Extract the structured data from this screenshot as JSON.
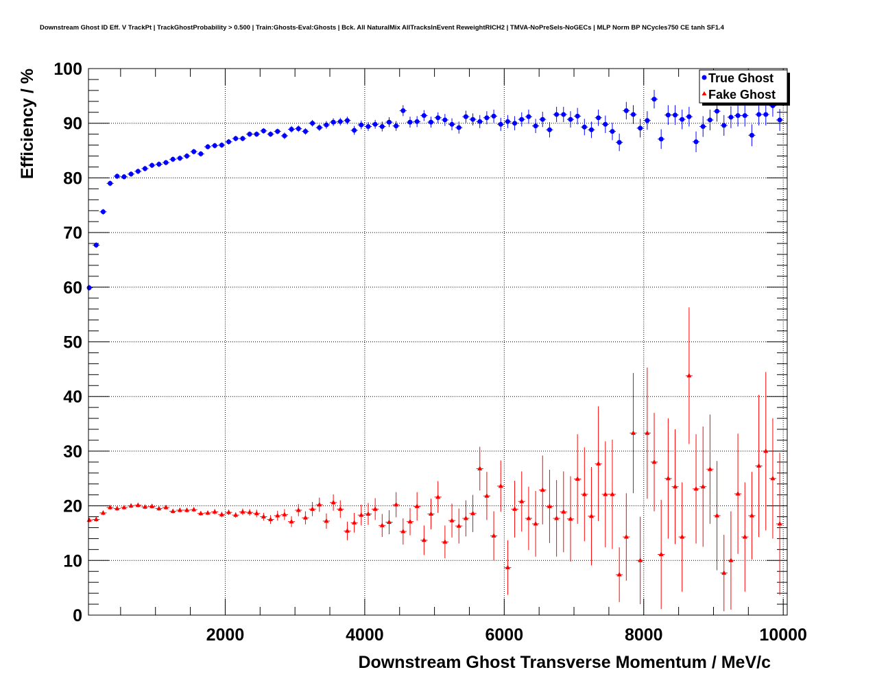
{
  "chart_data": {
    "type": "scatter",
    "title": "Downstream Ghost ID Eff. V TrackPt | TrackGhostProbability > 0.500 | Train:Ghosts-Eval:Ghosts | Bck. All NaturalMix AllTracksInEvent ReweightRICH2 | TMVA-NoPreSels-NoGECs | MLP Norm BP NCycles750 CE tanh SF1.4",
    "xlabel": "Downstream Ghost Transverse Momentum / MeV/c",
    "ylabel": "Efficiency / %",
    "xlim": [
      0,
      10000
    ],
    "ylim": [
      0,
      100
    ],
    "x_ticks": [
      2000,
      4000,
      6000,
      8000,
      10000
    ],
    "y_ticks": [
      0,
      10,
      20,
      30,
      40,
      50,
      60,
      70,
      80,
      90,
      100
    ],
    "x_tick_labels": [
      "2000",
      "4000",
      "6000",
      "8000",
      "10000"
    ],
    "y_tick_labels": [
      "0",
      "10",
      "20",
      "30",
      "40",
      "50",
      "60",
      "70",
      "80",
      "90",
      "100"
    ],
    "grid": true,
    "legend_position": "top-right",
    "bin_half_width": 50,
    "x": [
      50,
      150,
      250,
      350,
      450,
      550,
      650,
      750,
      850,
      950,
      1050,
      1150,
      1250,
      1350,
      1450,
      1550,
      1650,
      1750,
      1850,
      1950,
      2050,
      2150,
      2250,
      2350,
      2450,
      2550,
      2650,
      2750,
      2850,
      2950,
      3050,
      3150,
      3250,
      3350,
      3450,
      3550,
      3650,
      3750,
      3850,
      3950,
      4050,
      4150,
      4250,
      4350,
      4450,
      4550,
      4650,
      4750,
      4850,
      4950,
      5050,
      5150,
      5250,
      5350,
      5450,
      5550,
      5650,
      5750,
      5850,
      5950,
      6050,
      6150,
      6250,
      6350,
      6450,
      6550,
      6650,
      6750,
      6850,
      6950,
      7050,
      7150,
      7250,
      7350,
      7450,
      7550,
      7650,
      7750,
      7850,
      7950,
      8050,
      8150,
      8250,
      8350,
      8450,
      8550,
      8650,
      8750,
      8850,
      8950,
      9050,
      9150,
      9250,
      9350,
      9450,
      9550,
      9650,
      9750,
      9850,
      9950
    ],
    "series": [
      {
        "name": "True Ghost",
        "color": "#0000ff",
        "marker": "circle",
        "values": [
          59.9,
          67.7,
          73.8,
          79.0,
          80.3,
          80.2,
          80.7,
          81.2,
          81.7,
          82.3,
          82.5,
          82.8,
          83.4,
          83.6,
          84.0,
          84.8,
          84.4,
          85.7,
          85.9,
          86.0,
          86.6,
          87.2,
          87.2,
          88.0,
          88.0,
          88.6,
          88.0,
          88.5,
          87.7,
          88.9,
          89.0,
          88.5,
          90.0,
          89.2,
          89.7,
          90.2,
          90.3,
          90.5,
          88.7,
          89.7,
          89.4,
          89.8,
          89.4,
          90.2,
          89.5,
          92.3,
          90.2,
          90.3,
          91.4,
          90.2,
          91.0,
          90.6,
          89.8,
          89.2,
          91.2,
          90.7,
          90.3,
          91.0,
          91.3,
          89.8,
          90.3,
          90.0,
          90.7,
          91.2,
          89.5,
          90.7,
          88.8,
          91.6,
          91.6,
          90.7,
          91.3,
          89.3,
          88.8,
          91.0,
          89.8,
          88.5,
          86.5,
          92.3,
          91.6,
          89.1,
          90.5,
          94.4,
          87.1,
          91.5,
          91.5,
          90.7,
          91.2,
          86.6,
          89.4,
          90.6,
          92.2,
          89.6,
          91.1,
          91.4,
          91.4,
          87.8,
          91.6,
          91.6,
          93.2,
          90.6
        ],
        "errors": [
          0.5,
          0.5,
          0.5,
          0.5,
          0.5,
          0.5,
          0.5,
          0.5,
          0.5,
          0.5,
          0.5,
          0.5,
          0.5,
          0.5,
          0.5,
          0.5,
          0.5,
          0.5,
          0.5,
          0.5,
          0.5,
          0.5,
          0.5,
          0.5,
          0.5,
          0.5,
          0.5,
          0.5,
          0.6,
          0.6,
          0.6,
          0.6,
          0.6,
          0.6,
          0.7,
          0.7,
          0.7,
          0.7,
          0.8,
          0.8,
          0.8,
          0.8,
          0.9,
          0.9,
          0.9,
          1.0,
          1.0,
          1.0,
          1.0,
          1.0,
          1.0,
          1.1,
          1.1,
          1.1,
          1.1,
          1.1,
          1.2,
          1.2,
          1.2,
          1.2,
          1.2,
          1.3,
          1.3,
          1.3,
          1.3,
          1.4,
          1.4,
          1.4,
          1.4,
          1.5,
          1.5,
          1.5,
          1.5,
          1.5,
          1.6,
          1.6,
          1.6,
          1.6,
          1.7,
          1.7,
          1.7,
          1.7,
          1.8,
          1.8,
          1.8,
          1.8,
          1.8,
          1.9,
          1.9,
          1.9,
          1.9,
          1.9,
          2.0,
          2.0,
          2.0,
          2.0,
          2.0,
          2.0,
          2.0,
          2.0
        ]
      },
      {
        "name": "Fake Ghost",
        "color": "#ff0000",
        "marker": "triangle",
        "values": [
          17.4,
          17.5,
          18.7,
          19.7,
          19.5,
          19.7,
          20.0,
          20.1,
          19.8,
          19.9,
          19.5,
          19.7,
          19.0,
          19.2,
          19.2,
          19.3,
          18.6,
          18.7,
          18.9,
          18.4,
          18.8,
          18.3,
          18.9,
          18.8,
          18.6,
          18.0,
          17.5,
          18.2,
          18.4,
          17.1,
          19.2,
          17.8,
          19.4,
          20.2,
          17.2,
          20.6,
          19.4,
          15.4,
          16.9,
          18.3,
          18.5,
          19.4,
          16.4,
          17.0,
          20.2,
          15.3,
          17.1,
          19.9,
          13.7,
          18.5,
          21.6,
          13.4,
          17.3,
          16.3,
          17.7,
          18.6,
          26.8,
          21.8,
          14.5,
          23.6,
          8.7,
          19.4,
          20.8,
          17.7,
          16.7,
          22.9,
          19.9,
          17.7,
          18.9,
          17.6,
          24.9,
          22.1,
          18.1,
          27.7,
          22.1,
          22.1,
          7.4,
          14.3,
          33.3,
          10.0,
          33.3,
          28.0,
          11.1,
          25.0,
          23.5,
          14.3,
          43.8,
          23.1,
          23.5,
          26.7,
          18.2,
          7.7,
          10.0,
          22.2,
          14.3,
          18.2,
          27.3,
          30.0,
          25.0,
          16.7
        ],
        "errors": [
          0.4,
          0.4,
          0.4,
          0.4,
          0.4,
          0.4,
          0.4,
          0.4,
          0.4,
          0.4,
          0.4,
          0.4,
          0.4,
          0.4,
          0.4,
          0.4,
          0.4,
          0.4,
          0.5,
          0.5,
          0.5,
          0.5,
          0.6,
          0.6,
          0.7,
          0.7,
          0.8,
          0.9,
          1.0,
          1.0,
          1.1,
          1.2,
          1.3,
          1.3,
          1.4,
          1.5,
          1.6,
          1.7,
          1.8,
          1.9,
          2.0,
          2.0,
          2.1,
          2.2,
          2.3,
          2.4,
          2.5,
          2.6,
          2.7,
          2.8,
          2.9,
          3.0,
          3.1,
          3.2,
          3.3,
          3.4,
          4.0,
          4.4,
          4.5,
          4.7,
          5.0,
          5.2,
          5.5,
          5.8,
          6.0,
          6.3,
          6.7,
          7.0,
          7.4,
          7.8,
          8.2,
          8.6,
          9.0,
          10.5,
          9.7,
          10.0,
          5.0,
          8.0,
          11.0,
          8.0,
          12.0,
          9.0,
          10.0,
          11.0,
          10.5,
          10.0,
          12.5,
          10.0,
          11.0,
          10.0,
          10.0,
          7.0,
          9.0,
          11.0,
          10.0,
          8.0,
          13.0,
          14.5,
          11.0,
          13.0
        ]
      }
    ]
  }
}
